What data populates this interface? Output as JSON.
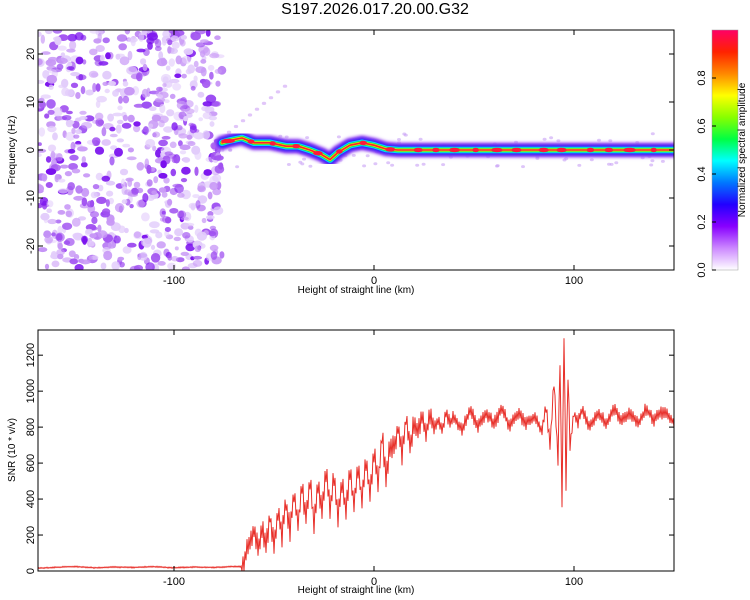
{
  "title": "S197.2026.017.20.00.G32",
  "chart_data": [
    {
      "type": "heatmap",
      "name": "spectrogram",
      "xlabel": "Height of straight line (km)",
      "ylabel": "Frequency (Hz)",
      "xlim": [
        -168,
        150
      ],
      "ylim": [
        -25,
        25
      ],
      "xticks": [
        -100,
        0,
        100
      ],
      "xtick_labels": [
        "-100",
        "0",
        "100"
      ],
      "yticks": [
        -20,
        -10,
        0,
        10,
        20
      ],
      "ytick_labels": [
        "-20",
        "-10",
        "0",
        "10",
        "20"
      ],
      "noise_region_x": [
        -168,
        -76
      ],
      "signal_start_x": -76,
      "ridge": [
        [
          -76,
          1.5
        ],
        [
          -72,
          2.0
        ],
        [
          -66,
          2.5
        ],
        [
          -60,
          1.5
        ],
        [
          -52,
          1.5
        ],
        [
          -44,
          0.8
        ],
        [
          -38,
          0.8
        ],
        [
          -32,
          0.0
        ],
        [
          -26,
          -1.0
        ],
        [
          -22,
          -2.0
        ],
        [
          -18,
          -0.5
        ],
        [
          -12,
          1.0
        ],
        [
          -6,
          1.5
        ],
        [
          0,
          1.0
        ],
        [
          6,
          0.2
        ],
        [
          12,
          0.0
        ],
        [
          150,
          0.0
        ]
      ],
      "colorbar": {
        "label": "Normalized spectral amplitude",
        "ticks": [
          0.0,
          0.2,
          0.4,
          0.6,
          0.8
        ],
        "tick_labels": [
          "0.0",
          "0.2",
          "0.4",
          "0.6",
          "0.8"
        ],
        "range": [
          0,
          1
        ],
        "colors": [
          "#ffffff",
          "#cc88ff",
          "#8800ff",
          "#2200ff",
          "#0077ff",
          "#00ffff",
          "#00ff44",
          "#88ff00",
          "#ffff00",
          "#ff8800",
          "#ff2200",
          "#ff0066"
        ]
      }
    },
    {
      "type": "line",
      "name": "snr",
      "xlabel": "Height of straight line (km)",
      "ylabel": "SNR (10 * v/v)",
      "xlim": [
        -168,
        150
      ],
      "ylim": [
        0,
        1340
      ],
      "xticks": [
        -100,
        0,
        100
      ],
      "xtick_labels": [
        "-100",
        "0",
        "100"
      ],
      "yticks": [
        0,
        200,
        400,
        600,
        800,
        1000,
        1200
      ],
      "ytick_labels": [
        "0",
        "200",
        "400",
        "600",
        "800",
        "1000",
        "1200"
      ],
      "color": "#e8302a",
      "x": [
        -168,
        -160,
        -150,
        -140,
        -130,
        -120,
        -110,
        -100,
        -90,
        -80,
        -70,
        -66,
        -64,
        -62,
        -60,
        -58,
        -56,
        -54,
        -52,
        -50,
        -48,
        -46,
        -44,
        -42,
        -40,
        -38,
        -36,
        -34,
        -32,
        -30,
        -28,
        -26,
        -24,
        -22,
        -20,
        -18,
        -16,
        -14,
        -12,
        -10,
        -8,
        -6,
        -4,
        -2,
        0,
        2,
        4,
        6,
        8,
        10,
        12,
        14,
        16,
        18,
        20,
        22,
        24,
        26,
        28,
        30,
        32,
        34,
        36,
        38,
        40,
        44,
        48,
        52,
        56,
        60,
        64,
        68,
        72,
        76,
        80,
        84,
        86,
        88,
        90,
        92,
        93,
        94,
        95,
        96,
        97,
        98,
        100,
        102,
        104,
        108,
        112,
        116,
        120,
        124,
        128,
        132,
        136,
        140,
        144,
        148,
        150
      ],
      "y": [
        15,
        20,
        25,
        18,
        22,
        20,
        24,
        18,
        22,
        20,
        25,
        25,
        90,
        180,
        230,
        120,
        250,
        140,
        300,
        160,
        320,
        200,
        380,
        220,
        430,
        260,
        460,
        300,
        500,
        260,
        480,
        320,
        560,
        350,
        520,
        300,
        480,
        340,
        540,
        360,
        580,
        380,
        620,
        420,
        660,
        480,
        760,
        520,
        700,
        680,
        800,
        640,
        850,
        700,
        820,
        780,
        860,
        760,
        880,
        800,
        840,
        780,
        880,
        820,
        860,
        780,
        900,
        800,
        880,
        820,
        900,
        800,
        880,
        820,
        860,
        780,
        920,
        700,
        1050,
        620,
        1180,
        380,
        1320,
        480,
        1100,
        700,
        880,
        820,
        900,
        800,
        880,
        820,
        900,
        840,
        880,
        820,
        900,
        840,
        880,
        860,
        820
      ]
    }
  ]
}
